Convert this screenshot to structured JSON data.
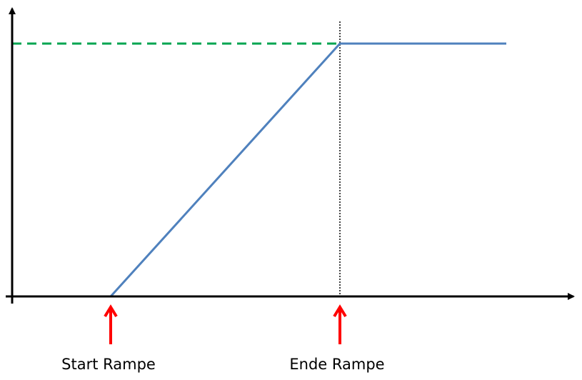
{
  "diagram": {
    "labels": {
      "start": "Start Rampe",
      "end": "Ende Rampe"
    },
    "colors": {
      "ramp_line": "#4f81bd",
      "target_level": "#00a550",
      "markers": "#ff0000",
      "axes": "#000000"
    },
    "elements": [
      "y-axis",
      "x-axis",
      "ramp-line",
      "target-level-dashed-line",
      "ramp-end-dotted-line",
      "start-arrow",
      "end-arrow"
    ]
  }
}
